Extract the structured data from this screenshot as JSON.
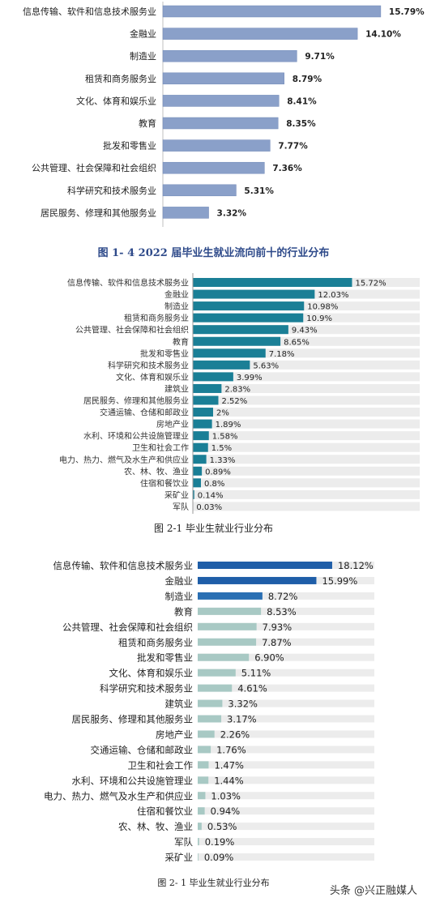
{
  "chart_data": [
    {
      "type": "bar",
      "orientation": "horizontal",
      "title": "图 1- 4 2022 届毕业生就业流向前十的行业分布",
      "categories": [
        "信息传输、软件和信息技术服务业",
        "金融业",
        "制造业",
        "租赁和商务服务业",
        "文化、体育和娱乐业",
        "教育",
        "批发和零售业",
        "公共管理、社会保障和社会组织",
        "科学研究和技术服务业",
        "居民服务、修理和其他服务业"
      ],
      "values": [
        15.79,
        14.1,
        9.71,
        8.79,
        8.41,
        8.35,
        7.77,
        7.36,
        5.31,
        3.32
      ],
      "value_labels": [
        "15.79%",
        "14.10%",
        "9.71%",
        "8.79%",
        "8.41%",
        "8.35%",
        "7.77%",
        "7.36%",
        "5.31%",
        "3.32%"
      ],
      "xlim": [
        0,
        16.5
      ],
      "colors": {
        "bar": "#8aa0c9",
        "bar_edge": "#7189b8"
      }
    },
    {
      "type": "bar",
      "orientation": "horizontal",
      "title": "图 2-1 毕业生就业行业分布",
      "categories": [
        "信息传输、软件和信息技术服务业",
        "金融业",
        "制造业",
        "租赁和商务服务业",
        "公共管理、社会保障和社会组织",
        "教育",
        "批发和零售业",
        "科学研究和技术服务业",
        "文化、体育和娱乐业",
        "建筑业",
        "居民服务、修理和其他服务业",
        "交通运输、仓储和邮政业",
        "房地产业",
        "水利、环境和公共设施管理业",
        "卫生和社会工作",
        "电力、热力、燃气及水生产和供应业",
        "农、林、牧、渔业",
        "住宿和餐饮业",
        "采矿业",
        "军队"
      ],
      "values": [
        15.72,
        12.03,
        10.98,
        10.9,
        9.43,
        8.65,
        7.18,
        5.63,
        3.99,
        2.83,
        2.52,
        2,
        1.89,
        1.58,
        1.5,
        1.33,
        0.89,
        0.8,
        0.14,
        0.03
      ],
      "value_labels": [
        "15.72%",
        "12.03%",
        "10.98%",
        "10.9%",
        "9.43%",
        "8.65%",
        "7.18%",
        "5.63%",
        "3.99%",
        "2.83%",
        "2.52%",
        "2%",
        "1.89%",
        "1.58%",
        "1.5%",
        "1.33%",
        "0.89%",
        "0.8%",
        "0.14%",
        "0.03%"
      ],
      "xlim": [
        0,
        22.4
      ],
      "colors": {
        "bar": "#1a7f96",
        "track": "#ececec"
      }
    },
    {
      "type": "bar",
      "orientation": "horizontal",
      "title": "图 2- 1 毕业生就业行业分布",
      "categories": [
        "信息传输、软件和信息技术服务业",
        "金融业",
        "制造业",
        "教育",
        "公共管理、社会保障和社会组织",
        "租赁和商务服务业",
        "批发和零售业",
        "文化、体育和娱乐业",
        "科学研究和技术服务业",
        "建筑业",
        "居民服务、修理和其他服务业",
        "房地产业",
        "交通运输、仓储和邮政业",
        "卫生和社会工作",
        "水利、环境和公共设施管理业",
        "电力、热力、燃气及水生产和供应业",
        "住宿和餐饮业",
        "农、林、牧、渔业",
        "军队",
        "采矿业"
      ],
      "values": [
        18.12,
        15.99,
        8.72,
        8.53,
        7.93,
        7.87,
        6.9,
        5.11,
        4.61,
        3.32,
        3.17,
        2.26,
        1.76,
        1.47,
        1.44,
        1.03,
        0.94,
        0.53,
        0.19,
        0.09
      ],
      "value_labels": [
        "18.12%",
        "15.99%",
        "8.72%",
        "8.53%",
        "7.93%",
        "7.87%",
        "6.90%",
        "5.11%",
        "4.61%",
        "3.32%",
        "3.17%",
        "2.26%",
        "1.76%",
        "1.47%",
        "1.44%",
        "1.03%",
        "0.94%",
        "0.53%",
        "0.19%",
        "0.09%"
      ],
      "xlim": [
        0,
        23.8
      ],
      "colors": {
        "bar_top": "#1f5ea8",
        "bar_mid": "#2a6fb3",
        "bar_light": "#a8c9c4",
        "track": "#ececec"
      }
    }
  ],
  "watermark": "头条 @兴正融媒人"
}
